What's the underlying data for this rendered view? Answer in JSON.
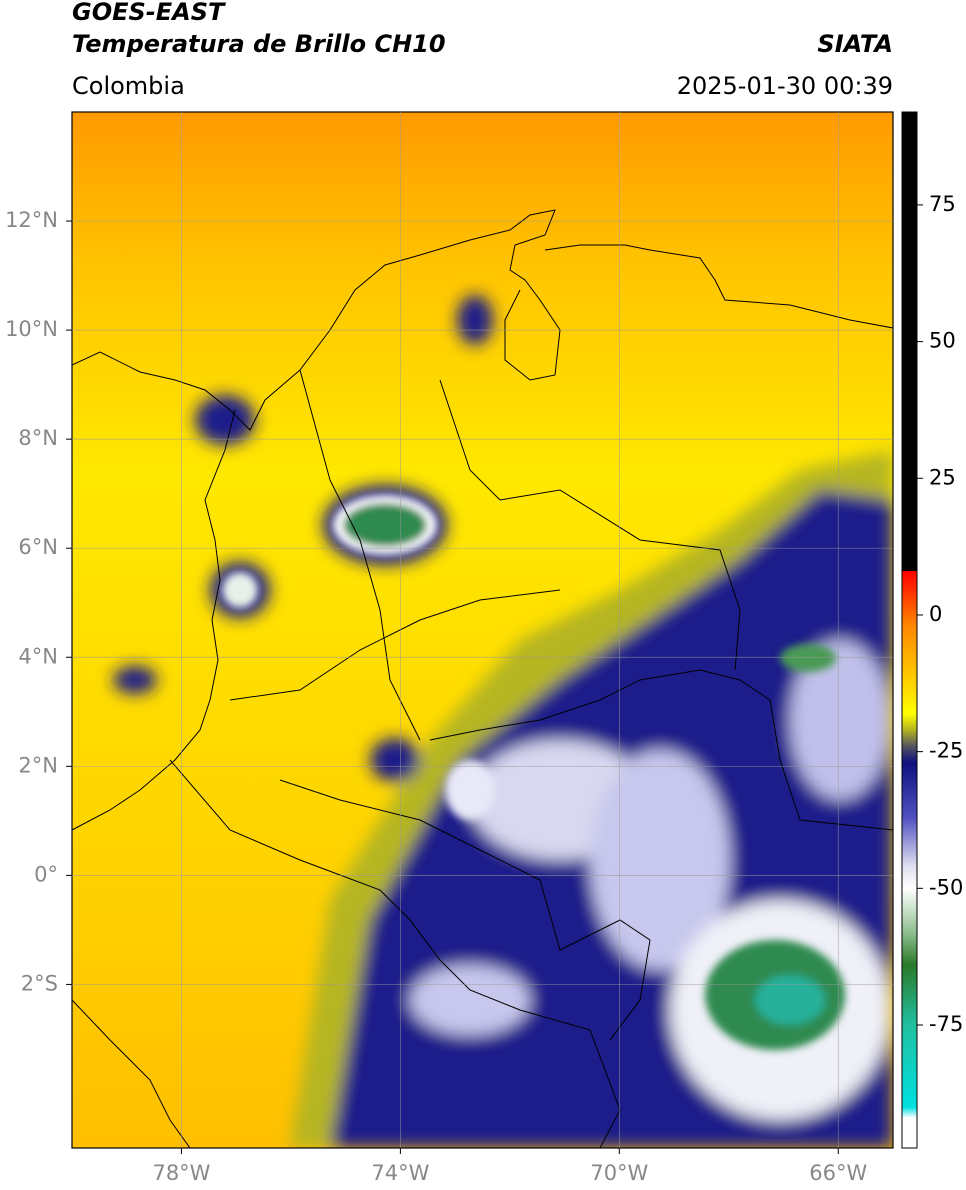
{
  "chart_data": {
    "type": "map",
    "title": "GOES-EAST",
    "subtitle": "Temperatura de Brillo CH10",
    "source": "SIATA",
    "region": "Colombia",
    "timestamp": "2025-01-30 00:39",
    "xlim": [
      -80,
      -65
    ],
    "ylim": [
      -5,
      14
    ],
    "xticks": [
      {
        "value": -78,
        "label": "78°W"
      },
      {
        "value": -74,
        "label": "74°W"
      },
      {
        "value": -70,
        "label": "70°W"
      },
      {
        "value": -66,
        "label": "66°W"
      }
    ],
    "yticks": [
      {
        "value": 12,
        "label": "12°N"
      },
      {
        "value": 10,
        "label": "10°N"
      },
      {
        "value": 8,
        "label": "8°N"
      },
      {
        "value": 6,
        "label": "6°N"
      },
      {
        "value": 4,
        "label": "4°N"
      },
      {
        "value": 2,
        "label": "2°N"
      },
      {
        "value": 0,
        "label": "0°"
      },
      {
        "value": -2,
        "label": "2°S"
      }
    ],
    "grid": true,
    "colorbar": {
      "lim": [
        -97.5,
        92
      ],
      "ticks": [
        75,
        50,
        25,
        0,
        -25,
        -50,
        -75
      ],
      "stops": [
        [
          92,
          "#000000"
        ],
        [
          8,
          "#000000"
        ],
        [
          8,
          "#ff0000"
        ],
        [
          -2,
          "#ff8800"
        ],
        [
          -14,
          "#ffdd00"
        ],
        [
          -18,
          "#ffff00"
        ],
        [
          -21,
          "#b5b520"
        ],
        [
          -24,
          "#555560"
        ],
        [
          -27,
          "#101080"
        ],
        [
          -37,
          "#5050c0"
        ],
        [
          -46,
          "#e0e0f0"
        ],
        [
          -50,
          "#ffffff"
        ],
        [
          -58,
          "#90c090"
        ],
        [
          -64,
          "#2a7a2a"
        ],
        [
          -75,
          "#20c0a0"
        ],
        [
          -90,
          "#00e0e0"
        ],
        [
          -92,
          "#ffffff"
        ],
        [
          -97.5,
          "#ffffff"
        ]
      ]
    }
  }
}
